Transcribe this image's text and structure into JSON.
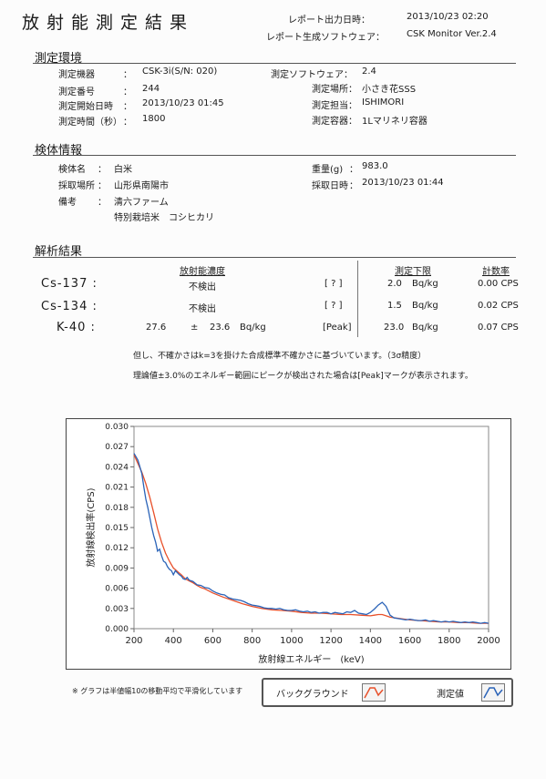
{
  "header": {
    "title": "放射能測定結果",
    "output_label": "レポート出力日時：",
    "output_value": "2013/10/23 02:20",
    "software_label": "レポート生成ソフトウェア：",
    "software_value": "CSK Monitor Ver.2.4"
  },
  "env": {
    "heading": "測定環境",
    "device_label": "測定機器",
    "colon": "：",
    "device_value": "CSK-3i(S/N: 020)",
    "number_label": "測定番号",
    "number_value": "244",
    "start_label": "測定開始日時",
    "start_value": "2013/10/23 01:45",
    "time_label": "測定時間（秒）",
    "time_value": "1800",
    "software_label": "測定ソフトウェア：",
    "software_value": "2.4",
    "place_label": "測定場所：",
    "place_value": "小さき花SSS",
    "person_label": "測定担当：",
    "person_value": "ISHIMORI",
    "container_label": "測定容器：",
    "container_value": "1Lマリネリ容器"
  },
  "sample": {
    "heading": "検体情報",
    "name_label": "検体名",
    "name_value": "白米",
    "loc_label": "採取場所",
    "loc_value": "山形県南陽市",
    "note_label": "備考",
    "note_line1": "清六ファーム",
    "note_line2": "特別栽培米　コシヒカリ",
    "weight_label": "重量(g)",
    "weight_value": "983.0",
    "date_label": "採取日時",
    "date_value": "2013/10/23 01:44"
  },
  "analysis": {
    "heading": "解析結果",
    "col_conc": "放射能濃度",
    "col_limit": "測定下限",
    "col_rate": "計数率",
    "rows": [
      {
        "nuclide": "Cs-137 :",
        "conc": "不検出",
        "flag": "[ ? ]",
        "limit": "2.0",
        "unit": "Bq/kg",
        "rate": "0.00 CPS"
      },
      {
        "nuclide": "Cs-134 :",
        "conc": "不検出",
        "flag": "[ ? ]",
        "limit": "1.5",
        "unit": "Bq/kg",
        "rate": "0.02 CPS"
      },
      {
        "nuclide": "K-40 :",
        "val": "27.6",
        "pm": "±",
        "err": "23.6",
        "vunit": "Bq/kg",
        "flag": "[Peak]",
        "limit": "23.0",
        "unit": "Bq/kg",
        "rate": "0.07 CPS"
      }
    ],
    "note1": "但し、不確かさはk=3を掛けた合成標準不確かさに基づいています。（3σ精度）",
    "note2": "理論値±3.0%のエネルギー範囲にピークが検出された場合は[Peak]マークが表示されます。"
  },
  "footnote": "※ グラフは半値幅10の移動平均で平滑化しています",
  "legend": {
    "background": "バックグラウンド",
    "measured": "測定値"
  },
  "colors": {
    "background": "#e8502a",
    "measured": "#2a63b8"
  },
  "chart_data": {
    "type": "line",
    "xlabel": "放射線エネルギー　(keV)",
    "ylabel": "放射線検出率(CPS)",
    "xlim": [
      200,
      2000
    ],
    "ylim": [
      0,
      0.03
    ],
    "xticks": [
      "200",
      "400",
      "600",
      "800",
      "1000",
      "1200",
      "1400",
      "1600",
      "1800",
      "2000"
    ],
    "yticks": [
      "0.000",
      "0.003",
      "0.006",
      "0.009",
      "0.012",
      "0.015",
      "0.018",
      "0.021",
      "0.024",
      "0.027",
      "0.030"
    ],
    "series": [
      {
        "name": "バックグラウンド",
        "x": [
          200,
          220,
          240,
          260,
          280,
          300,
          320,
          340,
          360,
          380,
          400,
          420,
          440,
          460,
          480,
          500,
          520,
          540,
          560,
          580,
          600,
          650,
          700,
          750,
          800,
          850,
          900,
          950,
          1000,
          1050,
          1100,
          1150,
          1200,
          1250,
          1300,
          1350,
          1400,
          1420,
          1440,
          1460,
          1480,
          1500,
          1550,
          1600,
          1650,
          1700,
          1750,
          1800,
          1850,
          1900,
          1950,
          2000
        ],
        "y": [
          0.0258,
          0.0245,
          0.0232,
          0.0215,
          0.0195,
          0.0172,
          0.0148,
          0.0128,
          0.0112,
          0.01,
          0.009,
          0.0085,
          0.008,
          0.0074,
          0.0071,
          0.0068,
          0.0064,
          0.0061,
          0.0059,
          0.0056,
          0.0053,
          0.0047,
          0.0042,
          0.0037,
          0.0033,
          0.003,
          0.0028,
          0.0027,
          0.0026,
          0.0024,
          0.0023,
          0.0023,
          0.0022,
          0.0021,
          0.0021,
          0.002,
          0.0019,
          0.002,
          0.0021,
          0.0021,
          0.0019,
          0.0017,
          0.0015,
          0.0013,
          0.0012,
          0.0011,
          0.001,
          0.001,
          0.0009,
          0.0009,
          0.0008,
          0.0008
        ]
      },
      {
        "name": "測定値",
        "x": [
          200,
          210,
          220,
          230,
          240,
          250,
          260,
          270,
          280,
          290,
          300,
          310,
          320,
          330,
          340,
          350,
          360,
          370,
          380,
          390,
          400,
          410,
          420,
          430,
          440,
          450,
          460,
          470,
          480,
          490,
          500,
          520,
          540,
          560,
          580,
          600,
          620,
          640,
          660,
          680,
          700,
          720,
          740,
          760,
          780,
          800,
          820,
          840,
          860,
          880,
          900,
          920,
          940,
          960,
          980,
          1000,
          1020,
          1040,
          1060,
          1080,
          1100,
          1120,
          1140,
          1160,
          1180,
          1200,
          1220,
          1240,
          1260,
          1280,
          1300,
          1320,
          1340,
          1360,
          1380,
          1400,
          1420,
          1440,
          1460,
          1480,
          1500,
          1520,
          1540,
          1560,
          1580,
          1600,
          1620,
          1640,
          1660,
          1680,
          1700,
          1720,
          1740,
          1760,
          1780,
          1800,
          1820,
          1840,
          1860,
          1880,
          1900,
          1920,
          1940,
          1960,
          1980,
          2000
        ],
        "y": [
          0.026,
          0.0255,
          0.025,
          0.024,
          0.023,
          0.021,
          0.0192,
          0.018,
          0.0165,
          0.015,
          0.0138,
          0.0128,
          0.0115,
          0.0118,
          0.0108,
          0.01,
          0.0098,
          0.0092,
          0.0088,
          0.0086,
          0.008,
          0.0086,
          0.0083,
          0.008,
          0.0078,
          0.0074,
          0.0073,
          0.0076,
          0.0072,
          0.0071,
          0.007,
          0.0065,
          0.0064,
          0.0061,
          0.006,
          0.0056,
          0.0053,
          0.0051,
          0.005,
          0.0046,
          0.0044,
          0.0043,
          0.0042,
          0.004,
          0.0037,
          0.0035,
          0.0034,
          0.0033,
          0.0031,
          0.003,
          0.003,
          0.0029,
          0.003,
          0.0028,
          0.0027,
          0.0027,
          0.0028,
          0.0026,
          0.0025,
          0.0026,
          0.0024,
          0.0025,
          0.0023,
          0.0024,
          0.0024,
          0.0022,
          0.0024,
          0.0023,
          0.0022,
          0.0025,
          0.0024,
          0.0027,
          0.0023,
          0.0022,
          0.0021,
          0.0024,
          0.0029,
          0.0035,
          0.0039,
          0.0033,
          0.002,
          0.0016,
          0.0015,
          0.0014,
          0.0013,
          0.0014,
          0.0013,
          0.0012,
          0.0012,
          0.0013,
          0.0011,
          0.0012,
          0.0011,
          0.001,
          0.0011,
          0.001,
          0.0011,
          0.001,
          0.0009,
          0.001,
          0.0009,
          0.001,
          0.0009,
          0.0008,
          0.0009,
          0.0008
        ]
      }
    ],
    "grid": false,
    "legend": "bottom-right"
  }
}
